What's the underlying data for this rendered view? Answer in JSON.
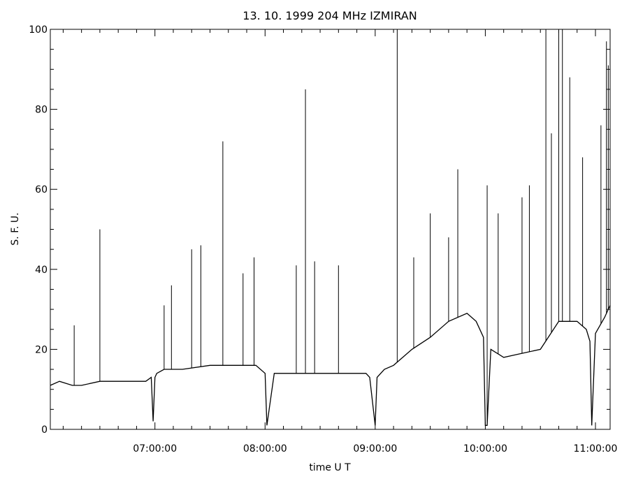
{
  "chart_data": {
    "type": "line",
    "title": "13. 10. 1999   204 MHz    IZMIRAN",
    "xlabel": "time  U T",
    "ylabel": "S. F. U.",
    "xlim": [
      "06:03:00",
      "11:08:00"
    ],
    "ylim": [
      0,
      100
    ],
    "x_ticks": [
      "07:00:00",
      "08:00:00",
      "09:00:00",
      "10:00:00",
      "11:00:00"
    ],
    "y_ticks": [
      "0",
      "20",
      "40",
      "60",
      "80",
      "100"
    ],
    "grid": false,
    "series": [
      {
        "color": "#000000",
        "x": [
          "06:03:00",
          "06:08:00",
          "06:15:00",
          "06:20:00",
          "06:30:00",
          "06:40:00",
          "06:50:00",
          "06:55:00",
          "06:58:00",
          "06:59:00",
          "07:00:00",
          "07:01:00",
          "07:05:00",
          "07:15:00",
          "07:30:00",
          "07:45:00",
          "07:55:00",
          "08:00:00",
          "08:01:00",
          "08:05:00",
          "08:20:00",
          "08:40:00",
          "08:55:00",
          "08:57:00",
          "09:00:00",
          "09:01:00",
          "09:05:00",
          "09:10:00",
          "09:20:00",
          "09:30:00",
          "09:40:00",
          "09:50:00",
          "09:55:00",
          "09:59:00",
          "10:00:00",
          "10:01:00",
          "10:03:00",
          "10:10:00",
          "10:20:00",
          "10:30:00",
          "10:40:00",
          "10:50:00",
          "10:55:00",
          "10:57:00",
          "10:58:00",
          "11:00:00",
          "11:05:00",
          "11:08:00"
        ],
        "y": [
          11,
          12,
          11,
          11,
          12,
          12,
          12,
          12,
          13,
          2,
          13,
          14,
          15,
          15,
          16,
          16,
          16,
          14,
          1,
          14,
          14,
          14,
          14,
          13,
          1,
          13,
          15,
          16,
          20,
          23,
          27,
          29,
          27,
          23,
          1,
          1,
          20,
          18,
          19,
          20,
          27,
          27,
          25,
          22,
          1,
          24,
          28,
          31
        ],
        "spikes": [
          {
            "x": "06:16:00",
            "y": 26
          },
          {
            "x": "06:30:00",
            "y": 50
          },
          {
            "x": "07:05:00",
            "y": 31
          },
          {
            "x": "07:09:00",
            "y": 36
          },
          {
            "x": "07:20:00",
            "y": 45
          },
          {
            "x": "07:25:00",
            "y": 46
          },
          {
            "x": "07:37:00",
            "y": 72
          },
          {
            "x": "07:48:00",
            "y": 39
          },
          {
            "x": "07:54:00",
            "y": 43
          },
          {
            "x": "08:17:00",
            "y": 41
          },
          {
            "x": "08:22:00",
            "y": 85
          },
          {
            "x": "08:27:00",
            "y": 42
          },
          {
            "x": "08:40:00",
            "y": 41
          },
          {
            "x": "09:12:00",
            "y": 100
          },
          {
            "x": "09:21:00",
            "y": 43
          },
          {
            "x": "09:30:00",
            "y": 54
          },
          {
            "x": "09:40:00",
            "y": 48
          },
          {
            "x": "09:45:00",
            "y": 65
          },
          {
            "x": "10:01:00",
            "y": 61
          },
          {
            "x": "10:07:00",
            "y": 54
          },
          {
            "x": "10:20:00",
            "y": 58
          },
          {
            "x": "10:24:00",
            "y": 61
          },
          {
            "x": "10:33:00",
            "y": 100
          },
          {
            "x": "10:36:00",
            "y": 74
          },
          {
            "x": "10:40:00",
            "y": 100
          },
          {
            "x": "10:42:00",
            "y": 100
          },
          {
            "x": "10:46:00",
            "y": 88
          },
          {
            "x": "10:53:00",
            "y": 68
          },
          {
            "x": "11:03:00",
            "y": 76
          },
          {
            "x": "11:06:00",
            "y": 97
          },
          {
            "x": "11:07:00",
            "y": 91
          }
        ]
      }
    ]
  }
}
